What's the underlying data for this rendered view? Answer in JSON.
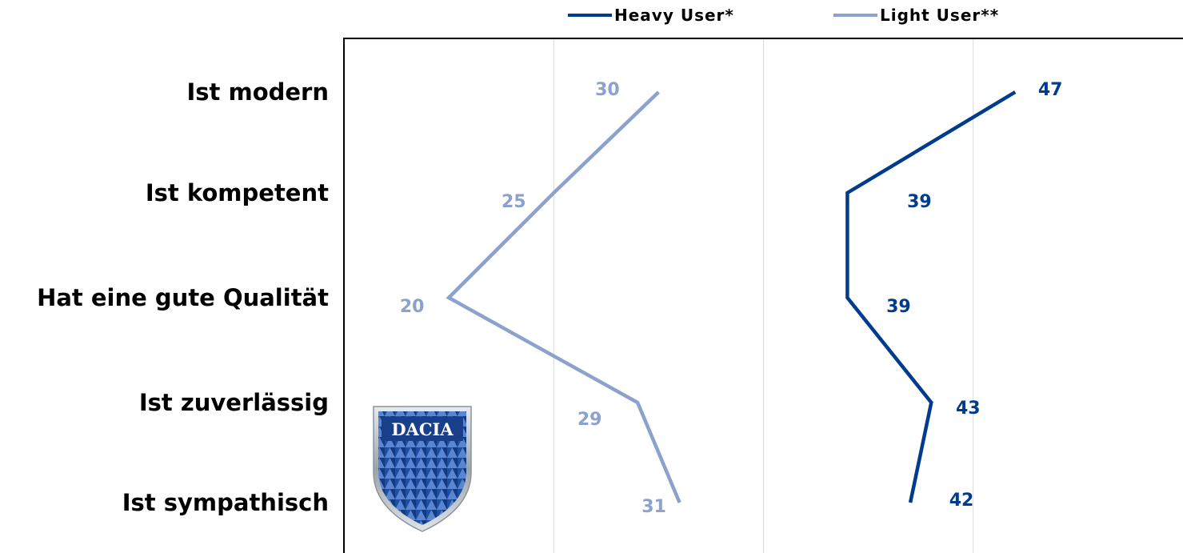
{
  "chart_data": {
    "type": "line",
    "orientation": "horizontal",
    "categories": [
      "Ist modern",
      "Ist kompetent",
      "Hat eine gute Qualität",
      "Ist zuverlässig",
      "Ist sympathisch"
    ],
    "series": [
      {
        "name": "Heavy User*",
        "values": [
          47,
          39,
          39,
          43,
          42
        ],
        "color": "#003b8e"
      },
      {
        "name": "Light User**",
        "values": [
          30,
          25,
          20,
          29,
          31
        ],
        "color": "#8aa2cc"
      }
    ],
    "xlim": [
      15,
      55
    ],
    "grid": true,
    "legend": "top-center"
  },
  "logo": {
    "text": "DACIA"
  }
}
